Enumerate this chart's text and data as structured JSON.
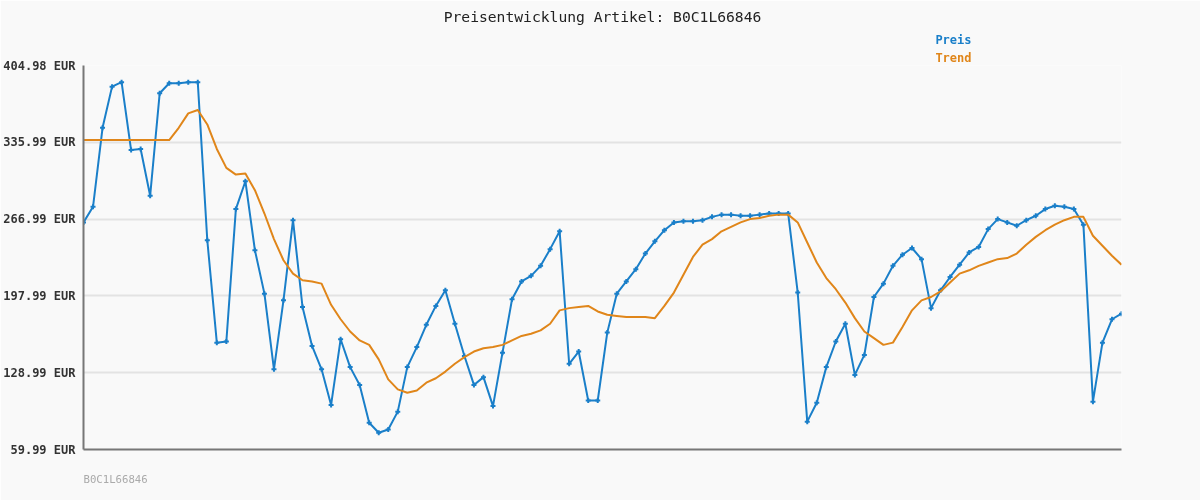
{
  "chart_data": {
    "type": "line",
    "title": "Preisentwicklung Artikel: B0C1L66846",
    "categories": [
      null,
      null,
      null,
      null,
      null,
      null,
      null,
      null,
      null,
      null,
      null,
      null,
      null,
      null,
      null,
      null,
      null,
      null,
      null,
      null,
      null,
      null,
      null,
      null,
      null,
      null,
      null,
      null,
      null,
      null,
      null,
      null,
      null,
      null,
      null,
      null,
      null,
      null,
      null,
      null,
      null,
      null,
      null,
      null,
      null,
      null,
      null,
      null,
      null,
      null,
      null,
      null,
      null,
      null,
      null,
      null,
      null,
      null,
      null,
      null,
      null,
      null,
      null,
      null,
      null,
      null,
      null,
      null,
      null,
      null,
      null,
      null,
      null,
      null,
      null,
      null,
      null,
      null,
      null,
      null,
      null,
      null,
      null,
      null,
      null,
      null,
      null,
      null,
      null,
      null,
      null,
      null,
      null,
      null,
      null,
      null,
      null,
      null,
      null,
      null,
      null,
      null,
      null,
      null,
      null,
      null,
      null,
      null,
      null,
      null
    ],
    "series": [
      {
        "name": "Preis",
        "color": "#1a7fc9",
        "marker": "cross",
        "values": [
          264,
          278,
          349,
          386,
          390,
          329,
          330,
          288,
          380,
          389,
          389,
          390,
          390,
          248,
          156,
          157,
          276,
          301,
          239,
          200,
          132,
          194,
          266,
          188,
          153,
          132,
          100,
          159,
          134,
          118,
          84,
          75,
          78,
          94,
          134,
          152,
          172,
          189,
          203,
          173,
          144,
          118,
          125,
          99,
          147,
          195,
          211,
          216,
          225,
          240,
          256,
          137,
          148,
          104,
          104,
          165,
          200,
          211,
          222,
          236,
          247,
          257,
          264,
          265,
          265,
          266,
          269,
          271,
          271,
          270,
          270,
          271,
          272,
          272,
          272,
          201,
          85,
          102,
          134,
          157,
          173,
          127,
          145,
          197,
          209,
          225,
          235,
          241,
          231,
          187,
          203,
          215,
          226,
          237,
          242,
          258,
          267,
          264,
          261,
          266,
          270,
          276,
          279,
          278,
          276,
          262,
          103,
          156,
          177,
          182
        ]
      },
      {
        "name": "Trend",
        "color": "#e0861a",
        "marker": "none",
        "values": [
          338,
          338,
          338,
          338,
          338,
          338,
          338,
          338,
          338,
          338,
          349,
          362,
          365,
          352,
          330,
          313,
          307,
          308,
          293,
          272,
          249,
          230,
          218,
          212,
          211,
          209,
          190,
          177,
          166,
          158,
          154,
          141,
          123,
          114,
          111,
          113,
          120,
          124,
          130,
          137,
          143,
          148,
          151,
          152,
          154,
          158,
          162,
          164,
          167,
          173,
          185,
          187,
          188,
          189,
          184,
          181,
          180,
          179,
          179,
          179,
          178,
          189,
          201,
          217,
          233,
          244,
          249,
          256,
          260,
          264,
          267,
          268,
          270,
          271,
          271,
          264,
          246,
          228,
          214,
          204,
          192,
          178,
          166,
          160,
          154,
          156,
          170,
          185,
          194,
          197,
          202,
          210,
          218,
          221,
          225,
          228,
          231,
          232,
          236,
          244,
          251,
          257,
          262,
          266,
          269,
          269,
          252,
          243,
          234,
          226
        ]
      }
    ],
    "ylim": [
      59.99,
      404.98
    ],
    "yticks": [
      {
        "value": 59.99,
        "label": "59.99 EUR"
      },
      {
        "value": 128.99,
        "label": "128.99 EUR"
      },
      {
        "value": 197.99,
        "label": "197.99 EUR"
      },
      {
        "value": 266.99,
        "label": "266.99 EUR"
      },
      {
        "value": 335.99,
        "label": "335.99 EUR"
      },
      {
        "value": 404.98,
        "label": "404.98 EUR"
      }
    ],
    "grid": "y",
    "line_style": "solid",
    "annotations": [
      "B0C1L66846"
    ]
  }
}
